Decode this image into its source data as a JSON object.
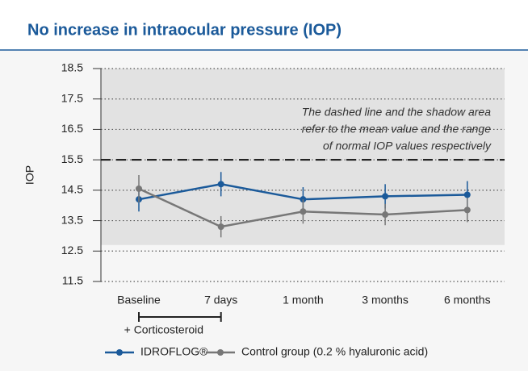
{
  "chart_data": {
    "type": "line",
    "title": "No increase in intraocular pressure (IOP)",
    "y_label": "IOP",
    "annotation": [
      "The dashed line and the shadow area",
      "refer to the mean value and the range",
      "of normal IOP values respectively"
    ],
    "bracket_label": "+ Corticosteroid",
    "categories": [
      "Baseline",
      "7 days",
      "1 month",
      "3 months",
      "6 months"
    ],
    "series": [
      {
        "name": "IDROFLOG®",
        "color": "#1b5a9a",
        "values": [
          14.2,
          14.7,
          14.2,
          14.3,
          14.35
        ],
        "errors": [
          0.4,
          0.4,
          0.4,
          0.4,
          0.45
        ]
      },
      {
        "name": "Control group (0.2 % hyaluronic acid)",
        "color": "#777777",
        "values": [
          14.55,
          13.3,
          13.8,
          13.7,
          13.85
        ],
        "errors": [
          0.45,
          0.35,
          0.4,
          0.35,
          0.4
        ]
      }
    ],
    "mean_line": 15.5,
    "normal_range": [
      12.7,
      18.5
    ],
    "ylim": [
      11.5,
      18.5
    ],
    "yticks": [
      11.5,
      12.5,
      13.5,
      14.5,
      15.5,
      16.5,
      17.5,
      18.5
    ],
    "grid": true
  }
}
